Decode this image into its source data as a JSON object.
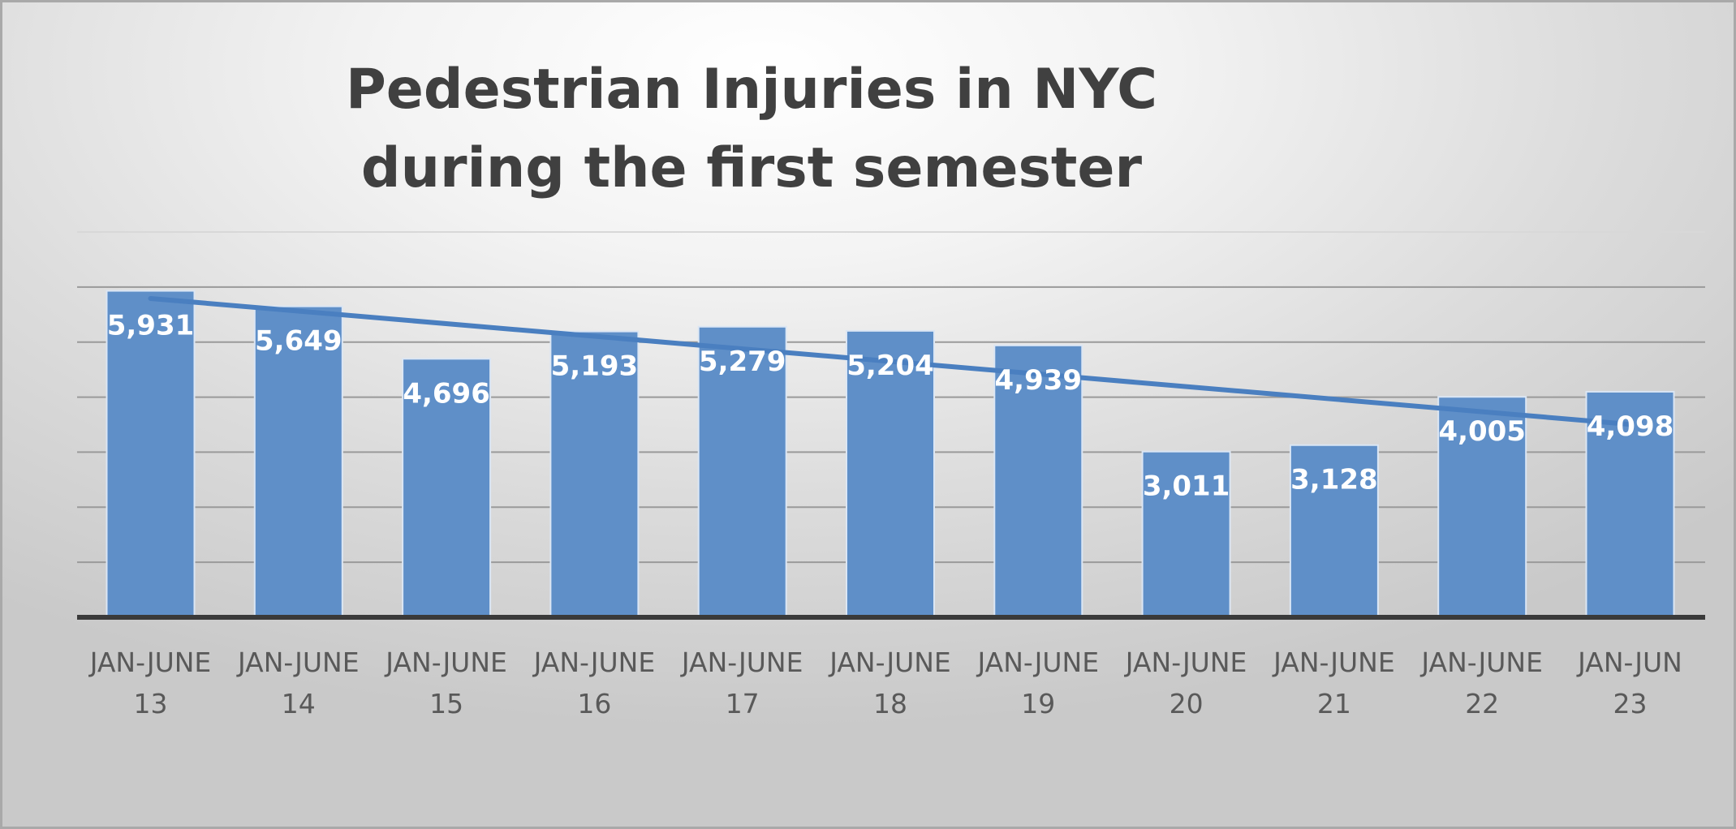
{
  "chart_data": {
    "type": "bar",
    "title": [
      "Pedestrian Injuries in NYC",
      "during the first semester"
    ],
    "categories": [
      [
        "JAN-JUNE",
        "13"
      ],
      [
        "JAN-JUNE",
        "14"
      ],
      [
        "JAN-JUNE",
        "15"
      ],
      [
        "JAN-JUNE",
        "16"
      ],
      [
        "JAN-JUNE",
        "17"
      ],
      [
        "JAN-JUNE",
        "18"
      ],
      [
        "JAN-JUNE",
        "19"
      ],
      [
        "JAN-JUNE",
        "20"
      ],
      [
        "JAN-JUNE",
        "21"
      ],
      [
        "JAN-JUNE",
        "22"
      ],
      [
        "JAN-JUN",
        "23"
      ]
    ],
    "values": [
      5931,
      5649,
      4696,
      5193,
      5279,
      5204,
      4939,
      3011,
      3128,
      4005,
      4098
    ],
    "data_labels": [
      "5,931",
      "5,649",
      "4,696",
      "5,193",
      "5,279",
      "5,204",
      "4,939",
      "3,011",
      "3,128",
      "4,005",
      "4,098"
    ],
    "ylim": [
      0,
      7000
    ],
    "gridline_step": 1000,
    "grid": true,
    "legend": "none",
    "trendline": {
      "type": "linear",
      "color": "#4a7fc0"
    },
    "bar_color": "#5f8fc8",
    "xlabel": "",
    "ylabel": ""
  }
}
